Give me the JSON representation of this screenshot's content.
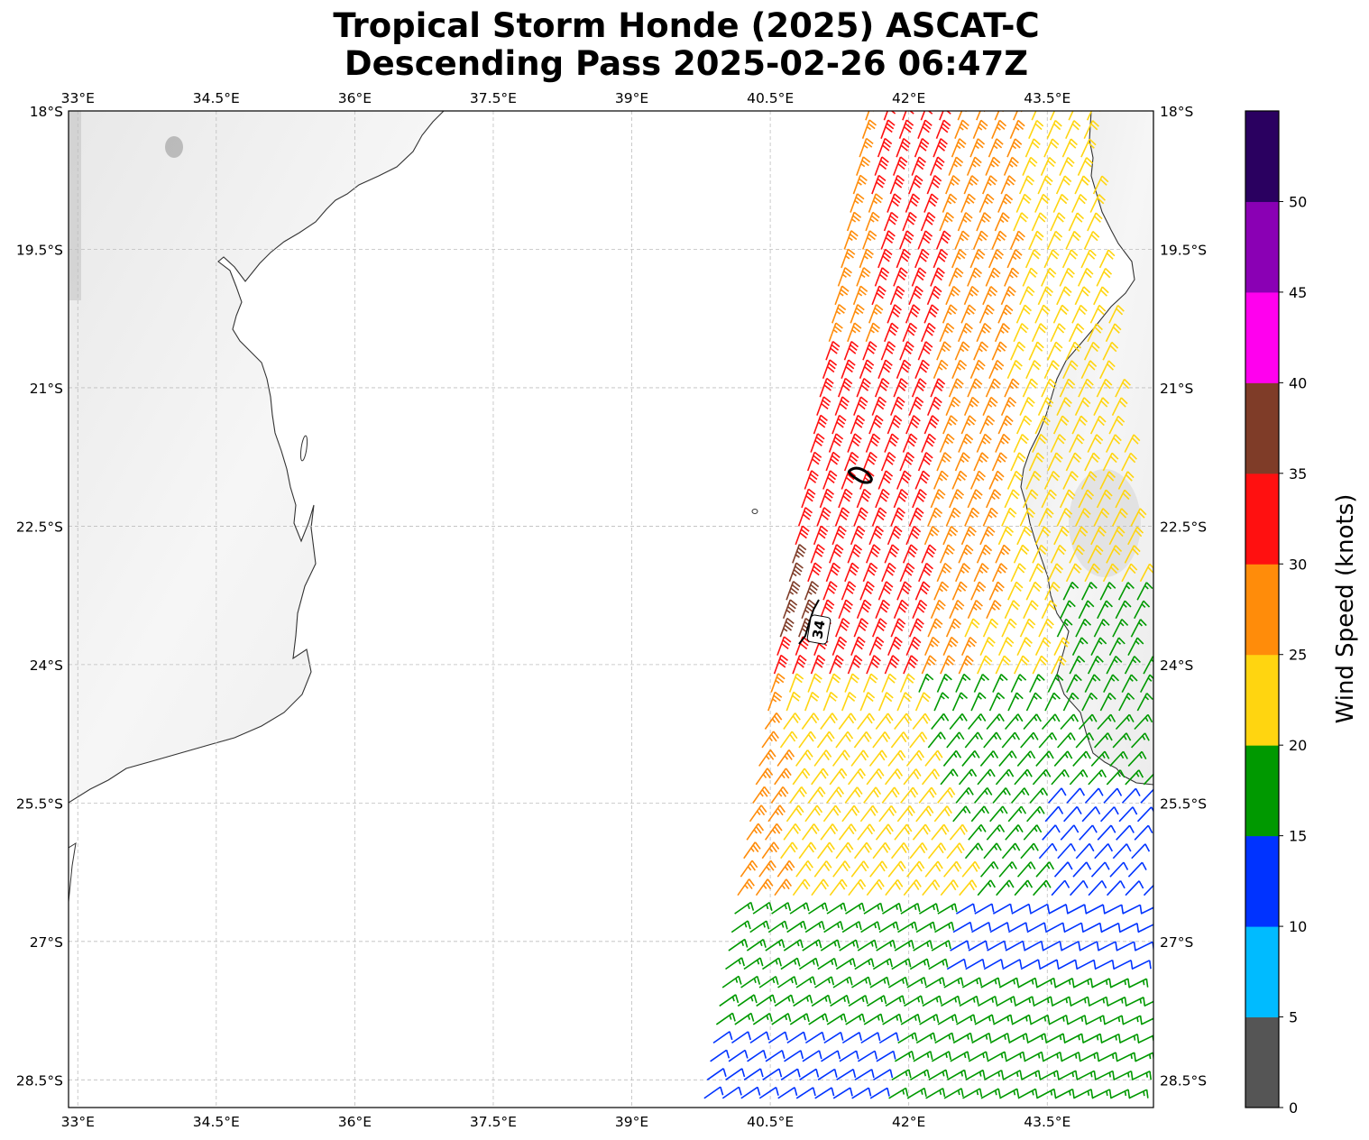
{
  "title": {
    "line1": "Tropical Storm Honde (2025) ASCAT-C",
    "line2": "Descending Pass 2025-02-26 06:47Z"
  },
  "map": {
    "lon_range": [
      32.9,
      44.65
    ],
    "lat_range": [
      -28.8,
      -18.0
    ],
    "lon_ticks": [
      "33°E",
      "34.5°E",
      "36°E",
      "37.5°E",
      "39°E",
      "40.5°E",
      "42°E",
      "43.5°E"
    ],
    "lon_tick_values": [
      33,
      34.5,
      36,
      37.5,
      39,
      40.5,
      42,
      43.5
    ],
    "lat_ticks": [
      "18°S",
      "19.5°S",
      "21°S",
      "22.5°S",
      "24°S",
      "25.5°S",
      "27°S",
      "28.5°S"
    ],
    "lat_tick_values": [
      -18,
      -19.5,
      -21,
      -22.5,
      -24,
      -25.5,
      -27,
      -28.5
    ],
    "contour_label": "34",
    "coastline_color": "#333333",
    "land_color": "#f2f2f2"
  },
  "colorbar": {
    "label": "Wind Speed (knots)",
    "ticks": [
      "0",
      "5",
      "10",
      "15",
      "20",
      "25",
      "30",
      "35",
      "40",
      "45",
      "50"
    ],
    "colors": [
      "#555555",
      "#00bbff",
      "#0033ff",
      "#009900",
      "#ffd510",
      "#ff8c0a",
      "#ff1010",
      "#7f3c28",
      "#ff00ee",
      "#8a00b4",
      "#2a0060"
    ]
  },
  "chart_data": {
    "type": "wind-barbs",
    "units": "knots",
    "swath_regions": [
      {
        "area": "northwest of swath, 18S-20.5S",
        "speed_kt": 27.5
      },
      {
        "area": "core, 19.5S-24S, 40.5E-42E",
        "speed_kt": 32.5
      },
      {
        "area": "west edge near 23.3S 40.7E",
        "speed_kt": 37.5
      },
      {
        "area": "northeast, 18S-21S, 42.5E-44E",
        "speed_kt": 22.5
      },
      {
        "area": "center-south, 24S-26.5S",
        "speed_kt": 22.5
      },
      {
        "area": "south, 26S-28.8S",
        "speed_kt": 17.5
      },
      {
        "area": "southeast, 25.5S-28.8S, 42.5E-44.5E",
        "speed_kt": 12.5
      }
    ]
  }
}
